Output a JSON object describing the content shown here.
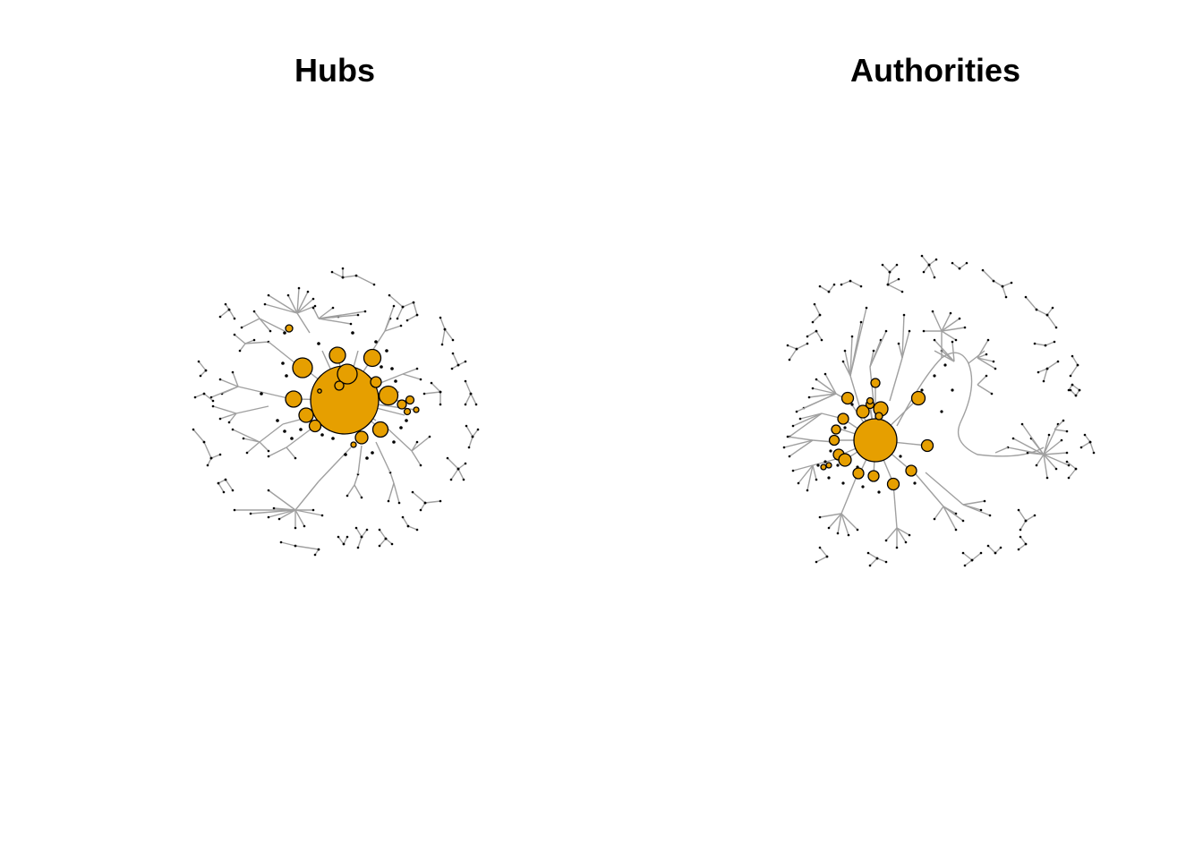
{
  "panels": [
    {
      "title": "Hubs"
    },
    {
      "title": "Authorities"
    }
  ],
  "colors": {
    "node_fill": "#E69F00",
    "node_stroke": "#000000",
    "edge": "#a0a0a0",
    "background": "#ffffff"
  }
}
